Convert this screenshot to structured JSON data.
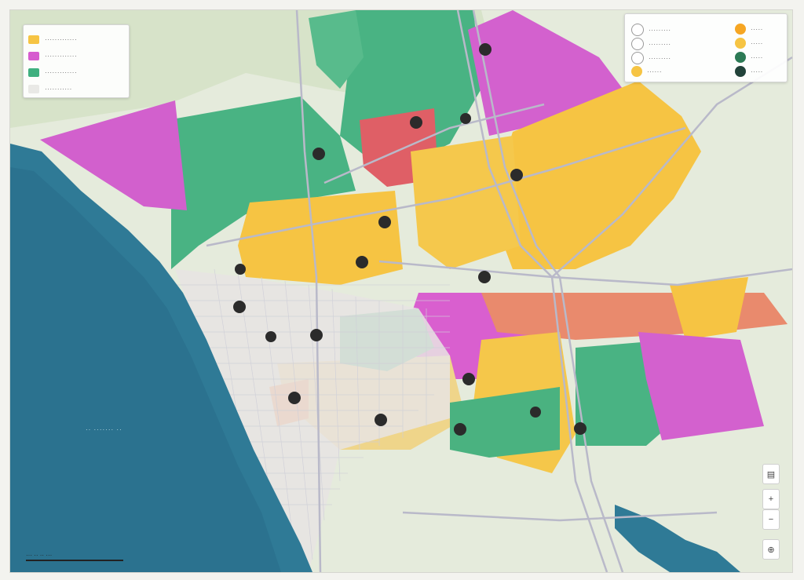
{
  "map": {
    "ocean_label": "·· ······· ··",
    "scale_label": "··· ·· ·· ···"
  },
  "legend_left": {
    "items": [
      {
        "color": "#f6c443",
        "label": "·············"
      },
      {
        "color": "#d65ccf",
        "label": "·············"
      },
      {
        "color": "#3fb07f",
        "label": "·············"
      },
      {
        "color": "#e9e9e6",
        "label": "···········"
      }
    ]
  },
  "legend_right": {
    "items": [
      {
        "color": "#f6a623",
        "label": "·····"
      },
      {
        "color": "#f6c443",
        "label": "·····"
      },
      {
        "color": "#2c7a55",
        "label": "·····"
      },
      {
        "color": "#22433a",
        "label": "·····"
      }
    ],
    "left_labels": [
      "·········",
      "·········",
      "·········",
      "······"
    ]
  },
  "controls": {
    "layers_icon": "layers-icon",
    "zoom_in_icon": "plus-icon",
    "zoom_out_icon": "minus-icon",
    "locate_icon": "crosshair-icon"
  }
}
